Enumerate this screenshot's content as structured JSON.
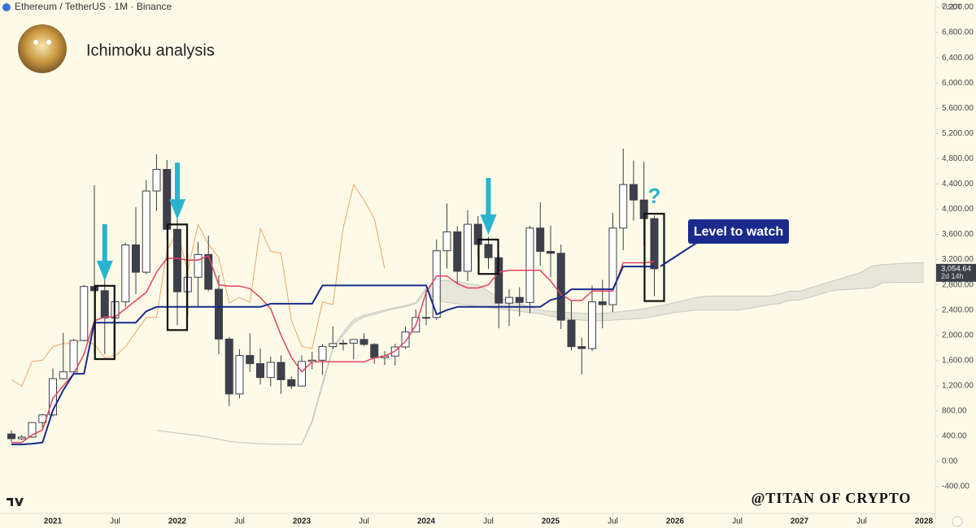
{
  "chart_data": {
    "type": "candlestick",
    "header": "Ethereum / TetherUS · 1M · Binance",
    "title": "Ichimoku analysis",
    "unit": "USDT",
    "watermark": "@TITAN OF CRYPTO",
    "callout": "Level to watch",
    "question": "?",
    "last_price": 3054.64,
    "last_price_label": "3,054.64",
    "countdown": "2d 14h",
    "xlim": [
      -5.1,
      85.1
    ],
    "ylim": [
      -824,
      7316
    ],
    "grid": false,
    "xticks": [
      {
        "value": 0,
        "label": "2021"
      },
      {
        "value": 6,
        "label": "Jul"
      },
      {
        "value": 12,
        "label": "2022"
      },
      {
        "value": 18,
        "label": "Jul"
      },
      {
        "value": 24,
        "label": "2023"
      },
      {
        "value": 30,
        "label": "Jul"
      },
      {
        "value": 36,
        "label": "2024"
      },
      {
        "value": 42,
        "label": "Jul"
      },
      {
        "value": 48,
        "label": "2025"
      },
      {
        "value": 54,
        "label": "Jul"
      },
      {
        "value": 60,
        "label": "2026"
      },
      {
        "value": 66,
        "label": "Jul"
      },
      {
        "value": 72,
        "label": "2027"
      },
      {
        "value": 78,
        "label": "Jul"
      },
      {
        "value": 84,
        "label": "2028"
      }
    ],
    "yticks": [
      {
        "value": -400,
        "label": "-400.00"
      },
      {
        "value": 0,
        "label": "0.00"
      },
      {
        "value": 400,
        "label": "400.00"
      },
      {
        "value": 800,
        "label": "800.00"
      },
      {
        "value": 1200,
        "label": "1,200.00"
      },
      {
        "value": 1600,
        "label": "1,600.00"
      },
      {
        "value": 2000,
        "label": "2,000.00"
      },
      {
        "value": 2400,
        "label": "2,400.00"
      },
      {
        "value": 2800,
        "label": "2,800.00"
      },
      {
        "value": 3200,
        "label": "3,200.00"
      },
      {
        "value": 3600,
        "label": "3,600.00"
      },
      {
        "value": 4000,
        "label": "4,000.00"
      },
      {
        "value": 4400,
        "label": "4,400.00"
      },
      {
        "value": 4800,
        "label": "4,800.00"
      },
      {
        "value": 5200,
        "label": "5,200.00"
      },
      {
        "value": 5600,
        "label": "5,600.00"
      },
      {
        "value": 6000,
        "label": "6,000.00"
      },
      {
        "value": 6400,
        "label": "6,400.00"
      },
      {
        "value": 6800,
        "label": "6,800.00"
      },
      {
        "value": 7200,
        "label": "7,200.00"
      }
    ],
    "x": [
      -4,
      -3,
      -2,
      -1,
      0,
      1,
      2,
      3,
      4,
      5,
      6,
      7,
      8,
      9,
      10,
      11,
      12,
      13,
      14,
      15,
      16,
      17,
      18,
      19,
      20,
      21,
      22,
      23,
      24,
      25,
      26,
      27,
      28,
      29,
      30,
      31,
      32,
      33,
      34,
      35,
      36,
      37,
      38,
      39,
      40,
      41,
      42,
      43,
      44,
      45,
      46,
      47,
      48,
      49,
      50,
      51,
      52,
      53,
      54,
      55,
      56,
      57,
      58
    ],
    "open": [
      435,
      360,
      386,
      616,
      737,
      1312,
      1420,
      1918,
      2773,
      2707,
      2275,
      2531,
      3433,
      3000,
      4288,
      4630,
      3680,
      2690,
      2920,
      3280,
      2730,
      1940,
      1070,
      1680,
      1550,
      1330,
      1570,
      1295,
      1195,
      1585,
      1605,
      1822,
      1868,
      1874,
      1934,
      1855,
      1645,
      1671,
      1815,
      2052,
      2282,
      2283,
      3340,
      3640,
      3015,
      3760,
      3440,
      3230,
      2510,
      2600,
      2520,
      3700,
      3330,
      3300,
      2240,
      1820,
      1790,
      2530,
      2485,
      3700,
      4390,
      4145,
      3850
    ],
    "high": [
      488,
      420,
      622,
      755,
      1475,
      2040,
      1943,
      2800,
      4380,
      2890,
      2560,
      3470,
      4030,
      4460,
      4870,
      4780,
      3900,
      3280,
      3480,
      3580,
      2950,
      1970,
      1780,
      2030,
      1790,
      1660,
      1680,
      1350,
      1680,
      1740,
      1860,
      2140,
      1930,
      1940,
      2030,
      1875,
      1750,
      1865,
      2140,
      2410,
      2720,
      3520,
      4090,
      3730,
      3980,
      3890,
      3560,
      3280,
      2730,
      2760,
      3740,
      4110,
      3740,
      3440,
      2550,
      1960,
      2790,
      2880,
      3940,
      4960,
      4770,
      4750,
      3900
    ],
    "low": [
      308,
      335,
      375,
      530,
      715,
      1300,
      1410,
      1900,
      1700,
      1700,
      1718,
      2450,
      2650,
      2970,
      3970,
      3500,
      2160,
      2300,
      2450,
      2700,
      1700,
      880,
      1000,
      1420,
      1220,
      1190,
      1070,
      1150,
      1190,
      1460,
      1370,
      1780,
      1760,
      1620,
      1830,
      1550,
      1530,
      1520,
      1780,
      2050,
      2160,
      2240,
      3060,
      2810,
      2860,
      3240,
      3050,
      2110,
      2150,
      2300,
      2350,
      3100,
      2920,
      2100,
      1760,
      1380,
      1750,
      2110,
      2370,
      3350,
      3820,
      3430,
      2620
    ],
    "close": [
      360,
      386,
      616,
      737,
      1312,
      1420,
      1918,
      2773,
      2707,
      2275,
      2531,
      3433,
      3000,
      4288,
      4630,
      3680,
      2690,
      2920,
      3280,
      2730,
      1940,
      1070,
      1680,
      1550,
      1330,
      1570,
      1295,
      1195,
      1585,
      1605,
      1822,
      1868,
      1874,
      1934,
      1855,
      1645,
      1671,
      1815,
      2052,
      2282,
      2283,
      3340,
      3640,
      3015,
      3760,
      3440,
      3230,
      2510,
      2600,
      2520,
      3700,
      3330,
      3300,
      2240,
      1820,
      1790,
      2530,
      2485,
      3700,
      4390,
      4145,
      3850,
      3054.64
    ],
    "up_color": "#ffffff",
    "down_color": "#3d3f4b",
    "series": [
      {
        "color": "#e2445f",
        "values": [
          300,
          300,
          420,
          500,
          1000,
          1200,
          1390,
          1700,
          2230,
          2290,
          2290,
          2420,
          2550,
          2680,
          3000,
          3220,
          3220,
          3190,
          3190,
          3260,
          2800,
          2780,
          2780,
          2740,
          2600,
          2420,
          2000,
          1650,
          1420,
          1580,
          1580,
          1580,
          1580,
          1580,
          1580,
          1640,
          1670,
          1750,
          1900,
          2160,
          2680,
          2940,
          2940,
          2820,
          2750,
          2750,
          2800,
          3000,
          3030,
          3030,
          3030,
          3030,
          2860,
          2650,
          2550,
          2550,
          2700,
          2700,
          2700,
          3150,
          3150,
          3150,
          3170
        ]
      },
      {
        "color": "#1a2a8c",
        "values": [
          270,
          270,
          280,
          300,
          810,
          1130,
          1390,
          1390,
          2200,
          2200,
          2200,
          2200,
          2200,
          2380,
          2450,
          2450,
          2450,
          2450,
          2450,
          2450,
          2450,
          2450,
          2450,
          2450,
          2450,
          2500,
          2500,
          2500,
          2500,
          2500,
          2790,
          2790,
          2790,
          2790,
          2790,
          2790,
          2790,
          2790,
          2790,
          2790,
          2790,
          2330,
          2400,
          2450,
          2450,
          2450,
          2450,
          2450,
          2450,
          2450,
          2450,
          2450,
          2560,
          2600,
          2730,
          2730,
          2730,
          2730,
          2730,
          3090,
          3090,
          3090,
          3090
        ]
      }
    ],
    "lagging": {
      "color": "#f2a46a",
      "x": [
        -4,
        -3,
        -2,
        -1,
        0,
        1,
        2,
        3,
        4,
        5,
        6,
        7,
        8,
        9,
        10,
        11,
        12,
        13,
        14,
        15,
        16,
        17,
        18,
        19,
        20,
        21,
        22,
        23,
        24,
        25,
        26,
        27,
        28,
        29,
        30,
        31,
        32
      ],
      "values": [
        1295,
        1195,
        1585,
        1605,
        1822,
        1868,
        1874,
        1934,
        1855,
        1645,
        1671,
        1815,
        2052,
        2282,
        2283,
        3340,
        3640,
        3015,
        3760,
        3440,
        3230,
        2510,
        2600,
        2520,
        3700,
        3330,
        3300,
        2240,
        1820,
        1790,
        2530,
        2485,
        3700,
        4390,
        4145,
        3850,
        3054.64
      ]
    },
    "cloud": {
      "color": "#c9c9c2",
      "x": [
        10,
        11,
        12,
        13,
        14,
        15,
        16,
        17,
        18,
        19,
        20,
        21,
        22,
        23,
        24,
        25,
        26,
        27,
        28,
        29,
        30,
        31,
        32,
        33,
        34,
        35,
        36,
        37,
        38,
        39,
        40,
        41,
        42,
        43,
        44,
        45,
        46,
        47,
        48,
        49,
        50,
        51,
        52,
        53,
        54,
        55,
        56,
        57,
        58,
        59,
        60,
        61,
        62,
        63,
        64,
        65,
        66,
        67,
        68,
        69,
        70,
        71,
        72,
        73,
        74,
        75,
        76,
        77,
        78,
        79,
        80,
        81,
        82,
        83,
        84
      ],
      "upper": [
        490,
        470,
        450,
        430,
        410,
        380,
        350,
        320,
        300,
        290,
        280,
        275,
        272,
        270,
        270,
        650,
        1250,
        1800,
        2050,
        2250,
        2320,
        2360,
        2400,
        2440,
        2470,
        2520,
        2750,
        2870,
        2870,
        2850,
        2820,
        2800,
        2700,
        2600,
        2550,
        2500,
        2450,
        2400,
        2380,
        2370,
        2360,
        2350,
        2340,
        2350,
        2360,
        2380,
        2400,
        2420,
        2450,
        2480,
        2520,
        2560,
        2600,
        2620,
        2620,
        2620,
        2620,
        2620,
        2620,
        2620,
        2650,
        2700,
        2700,
        2750,
        2800,
        2850,
        2900,
        2950,
        3000,
        3100,
        3120,
        3130,
        3140,
        3150,
        3150
      ],
      "lower": [
        490,
        470,
        450,
        430,
        410,
        380,
        350,
        320,
        300,
        290,
        280,
        275,
        272,
        270,
        270,
        620,
        1200,
        1780,
        2000,
        2200,
        2290,
        2330,
        2380,
        2420,
        2450,
        2500,
        2700,
        2550,
        2520,
        2500,
        2480,
        2460,
        2440,
        2420,
        2400,
        2380,
        2360,
        2340,
        2300,
        2280,
        2250,
        2240,
        2230,
        2230,
        2240,
        2250,
        2260,
        2270,
        2300,
        2330,
        2360,
        2380,
        2400,
        2400,
        2400,
        2400,
        2400,
        2420,
        2450,
        2480,
        2500,
        2550,
        2560,
        2600,
        2650,
        2700,
        2720,
        2730,
        2740,
        2750,
        2830,
        2840,
        2840,
        2840,
        2840
      ]
    },
    "highlight_x": [
      5,
      12,
      42,
      58
    ],
    "arrow_x": [
      5,
      12,
      42
    ],
    "arrow_color": "#2ab3cf"
  }
}
